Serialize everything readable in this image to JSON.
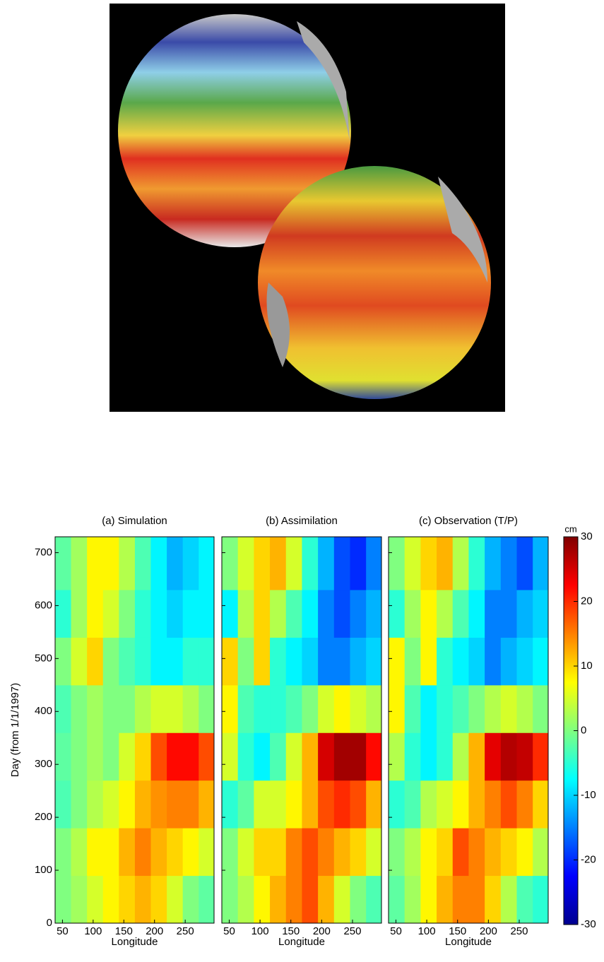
{
  "chart_data": [
    {
      "type": "heatmap",
      "title": "(a) Simulation",
      "xlabel": "Longitude",
      "ylabel": "Day (from 1/1/1997)",
      "xlim": [
        38,
        297
      ],
      "xticks": [
        50,
        100,
        150,
        200,
        250
      ],
      "ylim": [
        0,
        730
      ],
      "yticks": [
        0,
        100,
        200,
        300,
        400,
        500,
        600,
        700
      ],
      "x_bins": [
        38,
        64,
        90,
        116,
        142,
        168,
        194,
        220,
        246,
        272,
        297
      ],
      "y_bins": [
        0,
        90,
        180,
        270,
        360,
        450,
        540,
        630,
        730
      ],
      "values": [
        [
          0,
          2,
          5,
          8,
          10,
          12,
          10,
          5,
          0,
          -2
        ],
        [
          0,
          3,
          8,
          8,
          12,
          15,
          12,
          10,
          8,
          5
        ],
        [
          -3,
          0,
          3,
          5,
          8,
          12,
          14,
          15,
          15,
          12
        ],
        [
          -2,
          0,
          2,
          0,
          5,
          10,
          18,
          22,
          22,
          18
        ],
        [
          -3,
          0,
          2,
          0,
          0,
          3,
          5,
          5,
          3,
          0
        ],
        [
          0,
          5,
          10,
          0,
          -3,
          -5,
          -8,
          -8,
          -5,
          -5
        ],
        [
          -5,
          2,
          8,
          5,
          0,
          -5,
          -8,
          -10,
          -8,
          -8
        ],
        [
          -2,
          2,
          8,
          8,
          3,
          -3,
          -8,
          -12,
          -10,
          -8
        ]
      ]
    },
    {
      "type": "heatmap",
      "title": "(b) Assimilation",
      "xlabel": "Longitude",
      "xlim": [
        38,
        297
      ],
      "xticks": [
        50,
        100,
        150,
        200,
        250
      ],
      "ylim": [
        0,
        730
      ],
      "yticks": [
        0,
        100,
        200,
        300,
        400,
        500,
        600,
        700
      ],
      "x_bins": [
        38,
        64,
        90,
        116,
        142,
        168,
        194,
        220,
        246,
        272,
        297
      ],
      "y_bins": [
        0,
        90,
        180,
        270,
        360,
        450,
        540,
        630,
        730
      ],
      "values": [
        [
          0,
          3,
          8,
          12,
          15,
          18,
          12,
          5,
          0,
          -3
        ],
        [
          0,
          5,
          10,
          10,
          15,
          18,
          15,
          12,
          10,
          5
        ],
        [
          -5,
          -2,
          5,
          5,
          8,
          12,
          18,
          20,
          18,
          12
        ],
        [
          5,
          -5,
          -8,
          -3,
          5,
          12,
          25,
          28,
          28,
          22
        ],
        [
          8,
          -3,
          -5,
          -5,
          -3,
          0,
          5,
          8,
          5,
          3
        ],
        [
          10,
          0,
          10,
          -5,
          -8,
          -10,
          -15,
          -15,
          -12,
          -10
        ],
        [
          -8,
          3,
          10,
          3,
          -3,
          -8,
          -15,
          -18,
          -15,
          -12
        ],
        [
          0,
          5,
          10,
          12,
          5,
          -5,
          -12,
          -18,
          -20,
          -15
        ]
      ]
    },
    {
      "type": "heatmap",
      "title": "(c) Observation (T/P)",
      "xlabel": "Longitude",
      "xlim": [
        38,
        297
      ],
      "xticks": [
        50,
        100,
        150,
        200,
        250
      ],
      "ylim": [
        0,
        730
      ],
      "yticks": [
        0,
        100,
        200,
        300,
        400,
        500,
        600,
        700
      ],
      "x_bins": [
        38,
        64,
        90,
        116,
        142,
        168,
        194,
        220,
        246,
        272,
        297
      ],
      "y_bins": [
        0,
        90,
        180,
        270,
        360,
        450,
        540,
        630,
        730
      ],
      "values": [
        [
          -2,
          2,
          8,
          12,
          15,
          15,
          10,
          3,
          -3,
          -5
        ],
        [
          0,
          3,
          8,
          10,
          18,
          15,
          12,
          10,
          8,
          3
        ],
        [
          -5,
          -3,
          3,
          5,
          8,
          12,
          15,
          18,
          15,
          10
        ],
        [
          3,
          -5,
          -8,
          -5,
          3,
          12,
          24,
          27,
          26,
          20
        ],
        [
          8,
          -3,
          -8,
          -5,
          -3,
          0,
          3,
          5,
          3,
          0
        ],
        [
          8,
          0,
          8,
          -5,
          -8,
          -10,
          -15,
          -12,
          -10,
          -8
        ],
        [
          -5,
          2,
          8,
          3,
          -3,
          -8,
          -15,
          -15,
          -12,
          -10
        ],
        [
          0,
          5,
          10,
          12,
          3,
          -5,
          -12,
          -15,
          -18,
          -12
        ]
      ]
    }
  ],
  "colorbar": {
    "label": "cm",
    "clim": [
      -30,
      30
    ],
    "ticks": [
      -30,
      -20,
      -10,
      0,
      10,
      20,
      30
    ]
  }
}
